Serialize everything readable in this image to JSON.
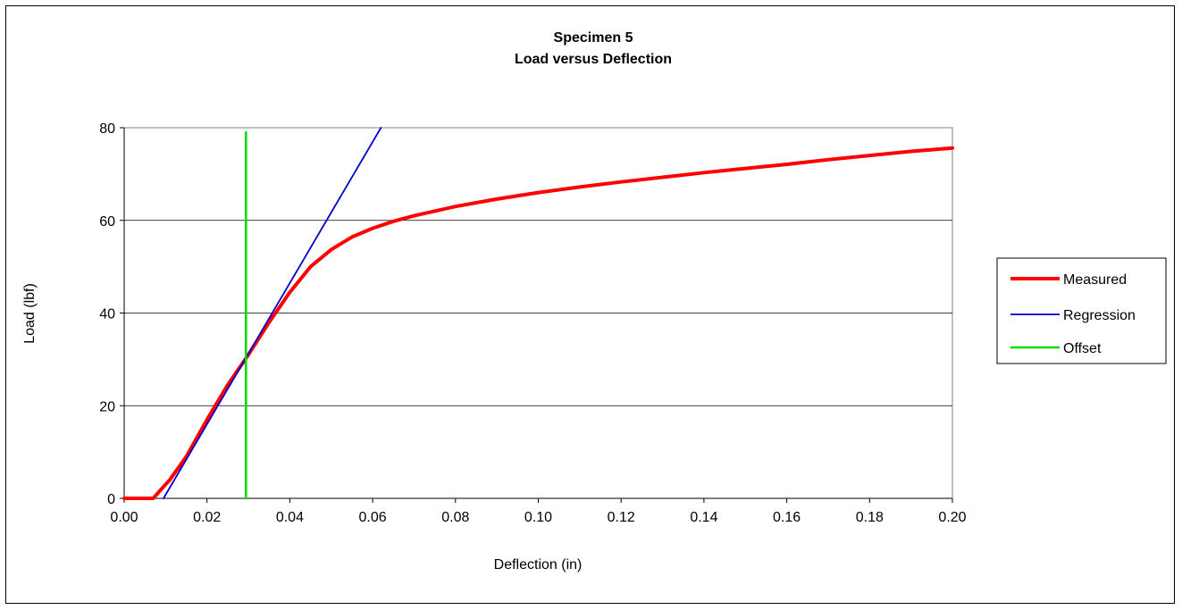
{
  "chart_data": {
    "type": "line",
    "title": "Specimen 5",
    "subtitle": "Load versus Deflection",
    "xlabel": "Deflection (in)",
    "ylabel": "Load (lbf)",
    "xlim": [
      0,
      0.2
    ],
    "ylim": [
      0,
      80
    ],
    "x_ticks": [
      "0.00",
      "0.02",
      "0.04",
      "0.06",
      "0.08",
      "0.10",
      "0.12",
      "0.14",
      "0.16",
      "0.18",
      "0.20"
    ],
    "y_ticks": [
      "0",
      "20",
      "40",
      "60",
      "80"
    ],
    "grid": "horizontal major gridlines",
    "legend_position": "right",
    "series": [
      {
        "name": "Measured",
        "color": "#ff0000",
        "points": [
          [
            0.0,
            0.0
          ],
          [
            0.004,
            0.0
          ],
          [
            0.007,
            0.0
          ],
          [
            0.0075,
            0.5
          ],
          [
            0.009,
            2.0
          ],
          [
            0.011,
            4.0
          ],
          [
            0.015,
            9.0
          ],
          [
            0.02,
            17.0
          ],
          [
            0.025,
            24.5
          ],
          [
            0.03,
            31.0
          ],
          [
            0.035,
            38.0
          ],
          [
            0.04,
            44.5
          ],
          [
            0.045,
            50.0
          ],
          [
            0.05,
            53.7
          ],
          [
            0.055,
            56.4
          ],
          [
            0.06,
            58.3
          ],
          [
            0.065,
            59.8
          ],
          [
            0.07,
            61.0
          ],
          [
            0.08,
            63.0
          ],
          [
            0.09,
            64.6
          ],
          [
            0.1,
            66.0
          ],
          [
            0.11,
            67.2
          ],
          [
            0.12,
            68.3
          ],
          [
            0.13,
            69.3
          ],
          [
            0.14,
            70.3
          ],
          [
            0.15,
            71.2
          ],
          [
            0.16,
            72.1
          ],
          [
            0.17,
            73.1
          ],
          [
            0.18,
            74.0
          ],
          [
            0.19,
            74.9
          ],
          [
            0.2,
            75.6
          ]
        ]
      },
      {
        "name": "Regression",
        "color": "#0000cc",
        "points": [
          [
            0.0095,
            0.0
          ],
          [
            0.062,
            80.0
          ]
        ]
      },
      {
        "name": "Offset",
        "color": "#00dd00",
        "points": [
          [
            0.0294,
            0.0
          ],
          [
            0.0294,
            79.0
          ]
        ]
      }
    ]
  }
}
